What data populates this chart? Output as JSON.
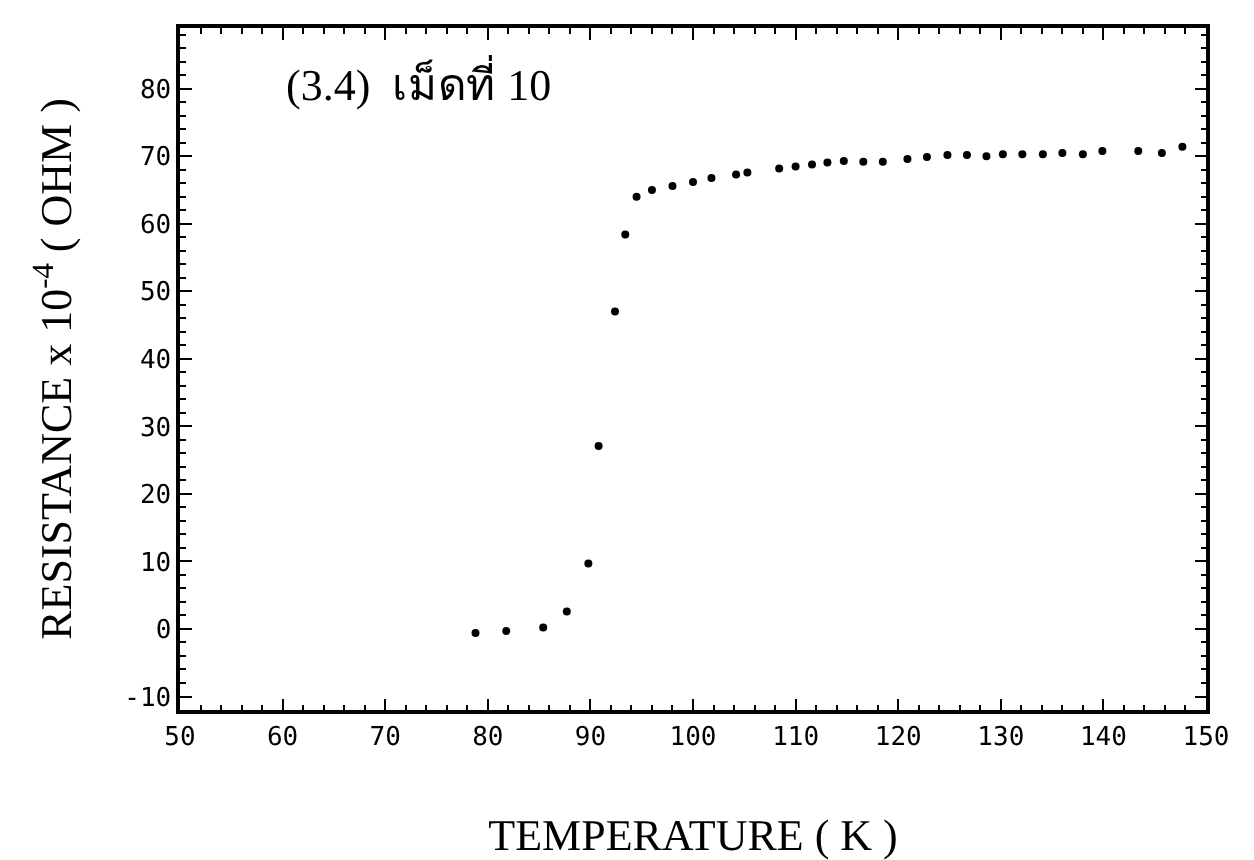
{
  "chart_data": {
    "type": "scatter",
    "xlabel": "TEMPERATURE ( K )",
    "ylabel": "RESISTANCE x 10$^{-4}$ ( OHM )",
    "annotations": [
      "(3.4)  เม็ดที่ 10"
    ],
    "x": [
      78.8,
      81.8,
      85.4,
      87.7,
      89.8,
      90.8,
      92.4,
      93.4,
      94.5,
      96,
      98,
      100,
      101.8,
      104.2,
      105.3,
      108.4,
      110,
      111.6,
      113.1,
      114.7,
      116.6,
      118.5,
      120.9,
      122.8,
      124.8,
      126.7,
      128.6,
      130.2,
      132.1,
      134.1,
      136,
      138,
      139.9,
      143.4,
      145.7,
      147.7
    ],
    "series": [
      {
        "color": "#000000",
        "values": [
          -0.6,
          -0.3,
          0.2,
          2.6,
          9.7,
          27.1,
          47,
          58.4,
          64,
          65,
          65.6,
          66.2,
          66.8,
          67.3,
          67.6,
          68.2,
          68.5,
          68.8,
          69.1,
          69.3,
          69.2,
          69.2,
          69.6,
          69.9,
          70.2,
          70.2,
          70,
          70.3,
          70.3,
          70.3,
          70.5,
          70.3,
          70.8,
          70.8,
          70.5,
          71.4
        ]
      }
    ],
    "xlim": [
      50,
      150
    ],
    "xticks": [
      50,
      60,
      70,
      80,
      90,
      100,
      110,
      120,
      130,
      140,
      150
    ],
    "ylim": [
      -12,
      89
    ],
    "yticks": [
      -10,
      0,
      10,
      20,
      30,
      40,
      50,
      60,
      70,
      80
    ],
    "grid": false,
    "marker": "circle"
  }
}
